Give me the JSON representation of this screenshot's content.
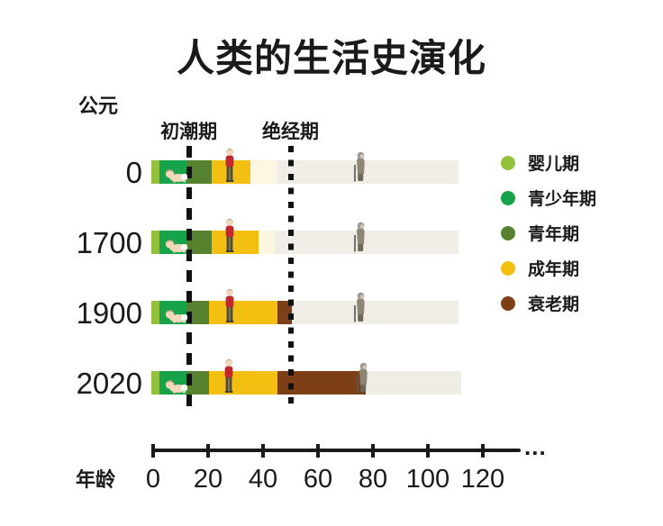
{
  "title": "人类的生活史演化",
  "chart_data": {
    "type": "bar",
    "orientation": "horizontal-stacked",
    "title": "人类的生活史演化",
    "ylabel": "公元",
    "xlabel": "年龄",
    "x_ticks": [
      0,
      20,
      40,
      60,
      80,
      100,
      120
    ],
    "x_overflow": "...",
    "xlim": [
      0,
      134
    ],
    "grid": false,
    "legend_position": "right",
    "stages": [
      {
        "key": "infant",
        "label": "婴儿期",
        "color": "#94c13d"
      },
      {
        "key": "juvenile",
        "label": "青少年期",
        "color": "#17a349"
      },
      {
        "key": "youth",
        "label": "青年期",
        "color": "#56812f"
      },
      {
        "key": "adult",
        "label": "成年期",
        "color": "#f3c011"
      },
      {
        "key": "old",
        "label": "衰老期",
        "color": "#7d3f16"
      }
    ],
    "faded_colors": {
      "faded_adult": "#fbf7e0",
      "faded": "#f0ece6"
    },
    "annotations": [
      {
        "key": "menarche",
        "label": "初潮期",
        "age": 13,
        "style": "dashed"
      },
      {
        "key": "menopause",
        "label": "绝经期",
        "age": 50,
        "style": "dotted"
      }
    ],
    "rows": [
      {
        "year": "0",
        "segments": [
          {
            "stage": "infant",
            "from": 0,
            "to": 3
          },
          {
            "stage": "juvenile",
            "from": 3,
            "to": 13
          },
          {
            "stage": "youth",
            "from": 13,
            "to": 22
          },
          {
            "stage": "adult",
            "from": 22,
            "to": 36
          },
          {
            "stage": "faded_adult",
            "from": 36,
            "to": 46
          },
          {
            "stage": "faded",
            "from": 46,
            "to": 111
          }
        ],
        "icons": [
          {
            "type": "crawling-baby-icon",
            "age": 8.5
          },
          {
            "type": "standing-adult-icon",
            "age": 28
          },
          {
            "type": "elderly-cane-icon",
            "age": 75
          }
        ]
      },
      {
        "year": "1700",
        "segments": [
          {
            "stage": "infant",
            "from": 0,
            "to": 3
          },
          {
            "stage": "juvenile",
            "from": 3,
            "to": 13
          },
          {
            "stage": "youth",
            "from": 13,
            "to": 22
          },
          {
            "stage": "adult",
            "from": 22,
            "to": 39
          },
          {
            "stage": "faded_adult",
            "from": 39,
            "to": 45
          },
          {
            "stage": "faded",
            "from": 45,
            "to": 111
          }
        ],
        "icons": [
          {
            "type": "crawling-baby-icon",
            "age": 8.5
          },
          {
            "type": "standing-adult-icon",
            "age": 28
          },
          {
            "type": "elderly-cane-icon",
            "age": 75
          }
        ]
      },
      {
        "year": "1900",
        "segments": [
          {
            "stage": "infant",
            "from": 0,
            "to": 3
          },
          {
            "stage": "juvenile",
            "from": 3,
            "to": 13
          },
          {
            "stage": "youth",
            "from": 13,
            "to": 21
          },
          {
            "stage": "adult",
            "from": 21,
            "to": 46
          },
          {
            "stage": "old",
            "from": 46,
            "to": 51
          },
          {
            "stage": "faded",
            "from": 51,
            "to": 111
          }
        ],
        "icons": [
          {
            "type": "crawling-baby-icon",
            "age": 8.5
          },
          {
            "type": "standing-adult-icon",
            "age": 28
          },
          {
            "type": "elderly-cane-icon",
            "age": 75
          }
        ]
      },
      {
        "year": "2020",
        "segments": [
          {
            "stage": "infant",
            "from": 0,
            "to": 3
          },
          {
            "stage": "juvenile",
            "from": 3,
            "to": 13
          },
          {
            "stage": "youth",
            "from": 13,
            "to": 21
          },
          {
            "stage": "adult",
            "from": 21,
            "to": 46
          },
          {
            "stage": "old",
            "from": 46,
            "to": 78
          },
          {
            "stage": "faded",
            "from": 78,
            "to": 112
          }
        ],
        "icons": [
          {
            "type": "crawling-baby-icon",
            "age": 8.5
          },
          {
            "type": "standing-adult-icon",
            "age": 27.5
          },
          {
            "type": "elderly-cane-icon",
            "age": 76
          }
        ]
      }
    ]
  }
}
